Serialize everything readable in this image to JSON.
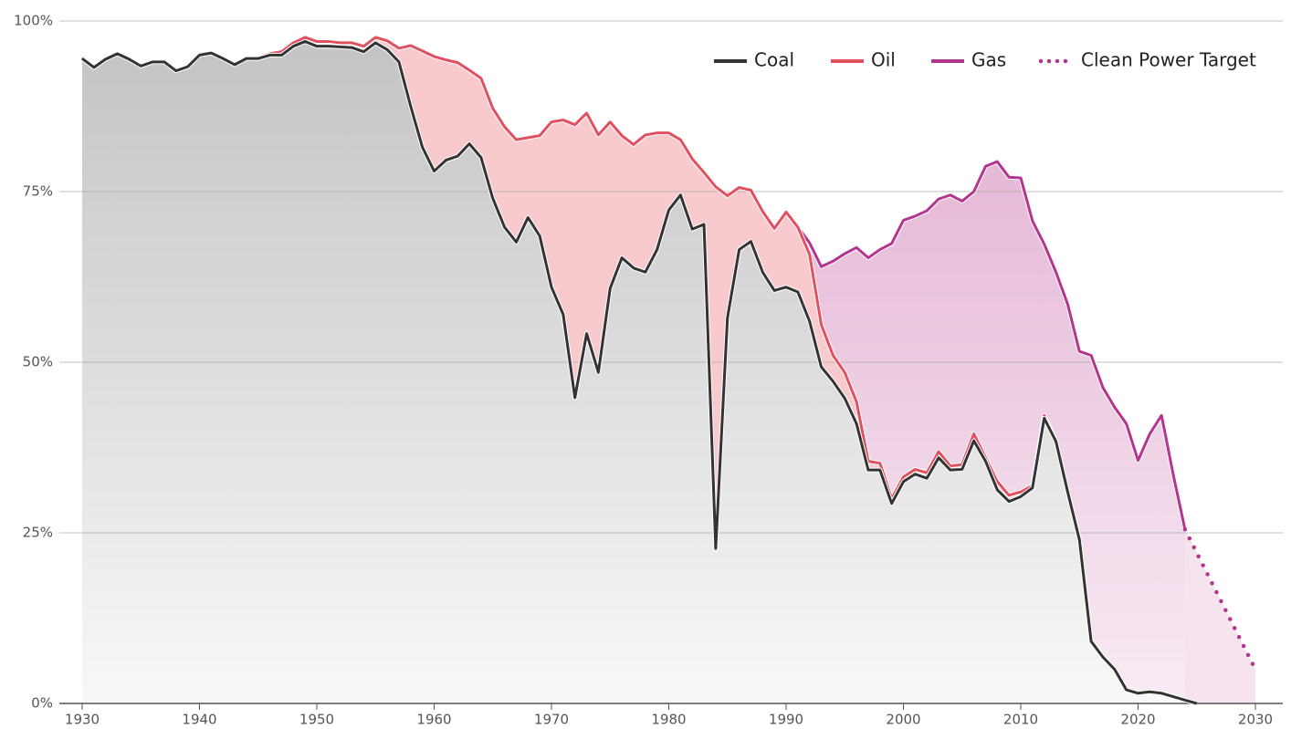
{
  "chart_data": {
    "type": "stacked-area",
    "x": [
      1930,
      1931,
      1932,
      1933,
      1934,
      1935,
      1936,
      1937,
      1938,
      1939,
      1940,
      1941,
      1942,
      1943,
      1944,
      1945,
      1946,
      1947,
      1948,
      1949,
      1950,
      1951,
      1952,
      1953,
      1954,
      1955,
      1956,
      1957,
      1958,
      1959,
      1960,
      1961,
      1962,
      1963,
      1964,
      1965,
      1966,
      1967,
      1968,
      1969,
      1970,
      1971,
      1972,
      1973,
      1974,
      1975,
      1976,
      1977,
      1978,
      1979,
      1980,
      1981,
      1982,
      1983,
      1984,
      1985,
      1986,
      1987,
      1988,
      1989,
      1990,
      1991,
      1992,
      1993,
      1994,
      1995,
      1996,
      1997,
      1998,
      1999,
      2000,
      2001,
      2002,
      2003,
      2004,
      2005,
      2006,
      2007,
      2008,
      2009,
      2010,
      2011,
      2012,
      2013,
      2014,
      2015,
      2016,
      2017,
      2018,
      2019,
      2020,
      2021,
      2022,
      2023,
      2024,
      2025
    ],
    "series": [
      {
        "name": "Coal",
        "color": "#333333",
        "values": [
          94.5,
          93.2,
          94.4,
          95.2,
          94.4,
          93.4,
          94,
          94,
          92.7,
          93.3,
          95,
          95.3,
          94.5,
          93.6,
          94.5,
          94.5,
          95,
          95,
          96.3,
          97,
          96.3,
          96.3,
          96.2,
          96.1,
          95.5,
          96.8,
          95.8,
          94,
          87.5,
          81.5,
          78,
          79.6,
          80.2,
          82,
          80,
          74,
          69.8,
          67.6,
          71.2,
          68.5,
          61,
          57,
          44.8,
          54.2,
          48.5,
          60.8,
          65.3,
          63.8,
          63.2,
          66.5,
          72.3,
          74.5,
          69.5,
          70.2,
          22.7,
          56.5,
          66.5,
          67.7,
          63.2,
          60.5,
          61,
          60.3,
          56,
          49.3,
          47.2,
          44.7,
          41,
          34.2,
          34.2,
          29.3,
          32.5,
          33.6,
          33,
          36,
          34.2,
          34.3,
          38.5,
          35.5,
          31.3,
          29.6,
          30.3,
          31.6,
          41.8,
          38.4,
          31,
          24,
          9.1,
          6.8,
          5,
          2,
          1.5,
          1.7,
          1.5,
          1,
          0.5,
          0
        ]
      },
      {
        "name": "Oil",
        "color": "#e0505f",
        "values": [
          0.1,
          0.1,
          0.1,
          0.1,
          0.1,
          0.1,
          0.1,
          0.1,
          0.1,
          0.1,
          0.1,
          0.1,
          0.1,
          0.1,
          0.1,
          0.1,
          0.2,
          0.5,
          0.5,
          0.6,
          0.7,
          0.7,
          0.6,
          0.7,
          0.8,
          0.8,
          1.3,
          2,
          8.9,
          14.1,
          16.8,
          14.7,
          13.7,
          10.8,
          11.6,
          13.2,
          14.7,
          15,
          11.7,
          14.7,
          24.2,
          28.5,
          40,
          32.3,
          34.8,
          24.4,
          17.9,
          18.1,
          20.1,
          17.1,
          11.3,
          8.1,
          10.3,
          7.6,
          53,
          17.9,
          9.1,
          7.5,
          8.9,
          9.1,
          11,
          9.5,
          9.8,
          6.2,
          3.8,
          3.8,
          3.2,
          1.3,
          1,
          0.7,
          0.7,
          0.7,
          0.8,
          0.9,
          0.6,
          0.7,
          1,
          0.5,
          1.2,
          0.9,
          0.7,
          0.3,
          0.4,
          0,
          0,
          0,
          0,
          0,
          0,
          0,
          0,
          0,
          0,
          0,
          0,
          0
        ]
      },
      {
        "name": "Gas",
        "color": "#b4358f",
        "values": [
          null,
          null,
          null,
          null,
          null,
          null,
          null,
          null,
          null,
          null,
          null,
          null,
          null,
          null,
          null,
          null,
          null,
          null,
          null,
          null,
          null,
          null,
          null,
          null,
          null,
          null,
          null,
          null,
          null,
          null,
          null,
          null,
          null,
          null,
          null,
          null,
          null,
          null,
          null,
          null,
          null,
          null,
          null,
          null,
          null,
          null,
          null,
          null,
          null,
          null,
          null,
          null,
          null,
          null,
          null,
          null,
          null,
          null,
          null,
          null,
          null,
          0,
          1.7,
          8.5,
          13.8,
          17.4,
          22.6,
          29.8,
          31.3,
          37.4,
          37.6,
          37.1,
          38.4,
          37,
          39.7,
          38.6,
          35.5,
          42.7,
          46.9,
          46.6,
          46,
          38.8,
          25.1,
          24.8,
          27.5,
          27.6,
          41.9,
          39.5,
          38.4,
          39,
          34.1,
          37.8,
          40.7,
          32.5,
          25,
          null
        ]
      }
    ],
    "target": {
      "name": "Clean Power Target",
      "color": "#b4358f",
      "x": [
        2024,
        2030
      ],
      "values": [
        25.5,
        5
      ]
    },
    "xlim": [
      1930,
      2030
    ],
    "xticks": [
      1930,
      1940,
      1950,
      1960,
      1970,
      1980,
      1990,
      2000,
      2010,
      2020,
      2030
    ],
    "ylim": [
      0,
      100
    ],
    "yticks": [
      {
        "value": 0,
        "label": "0%"
      },
      {
        "value": 25,
        "label": "25%"
      },
      {
        "value": 50,
        "label": "50%"
      },
      {
        "value": 75,
        "label": "75%"
      },
      {
        "value": 100,
        "label": "100%"
      }
    ],
    "grid": true,
    "legend": "top-right"
  }
}
